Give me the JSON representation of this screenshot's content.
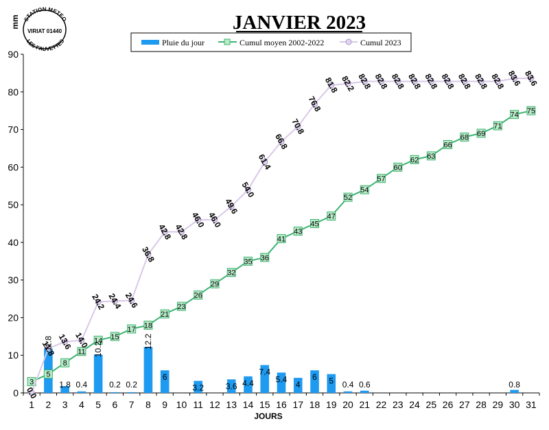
{
  "chart_data": {
    "type": "bar",
    "title": "JANVIER 2023",
    "xlabel": "JOURS",
    "ylabel": "mm",
    "ylim": [
      0,
      90
    ],
    "yticks": [
      0,
      10,
      20,
      30,
      40,
      50,
      60,
      70,
      80,
      90
    ],
    "categories": [
      "1",
      "2",
      "3",
      "4",
      "5",
      "6",
      "7",
      "8",
      "9",
      "10",
      "11",
      "12",
      "13",
      "14",
      "15",
      "16",
      "17",
      "18",
      "19",
      "20",
      "21",
      "22",
      "23",
      "24",
      "25",
      "26",
      "27",
      "28",
      "29",
      "30",
      "31"
    ],
    "legend_position": "top",
    "series": [
      {
        "name": "Pluie du jour",
        "kind": "bar",
        "color": "#1E9AF0",
        "values": [
          0,
          11.8,
          1.8,
          0.4,
          10.2,
          0.2,
          0.2,
          12.2,
          6,
          0,
          3.2,
          0,
          3.6,
          4.4,
          7.4,
          5.4,
          4,
          6,
          5,
          0.4,
          0.6,
          0,
          0,
          0,
          0,
          0,
          0,
          0,
          0,
          0.8,
          0
        ],
        "labels": [
          "",
          "11.8",
          "1.8",
          "0.4",
          "10.2",
          "0.2",
          "0.2",
          "12.2",
          "6",
          "",
          "3.2",
          "",
          "3.6",
          "4.4",
          "7.4",
          "5.4",
          "4",
          "6",
          "5",
          "0.4",
          "0.6",
          "",
          "",
          "",
          "",
          "",
          "",
          "",
          "",
          "0.8",
          ""
        ]
      },
      {
        "name": "Cumul moyen 2002-2022",
        "kind": "line",
        "color": "#3CB371",
        "values": [
          3,
          5,
          8,
          11,
          14,
          15,
          17,
          18,
          21,
          23,
          26,
          29,
          32,
          35,
          36,
          41,
          43,
          45,
          47,
          52,
          54,
          57,
          60,
          62,
          63,
          66,
          68,
          69,
          71,
          74,
          75
        ]
      },
      {
        "name": "Cumul 2023",
        "kind": "line",
        "color": "#D8C8E8",
        "values": [
          0.0,
          11.8,
          13.6,
          14.0,
          24.2,
          24.4,
          24.6,
          36.8,
          42.8,
          42.8,
          46.0,
          46.0,
          49.6,
          54.0,
          61.4,
          66.8,
          70.8,
          76.8,
          81.8,
          82.2,
          82.8,
          82.8,
          82.8,
          82.8,
          82.8,
          82.8,
          82.8,
          82.8,
          82.8,
          83.6,
          83.6
        ],
        "labels": [
          "0.0",
          "11.8",
          "13.6",
          "14.0",
          "24.2",
          "24.4",
          "24.6",
          "36.8",
          "42.8",
          "42.8",
          "46.0",
          "46.0",
          "49.6",
          "54.0",
          "61.4",
          "66.8",
          "70.8",
          "76.8",
          "81.8",
          "82.2",
          "82.8",
          "82.8",
          "82.8",
          "82.8",
          "82.8",
          "82.8",
          "82.8",
          "82.8",
          "82.8",
          "83.6",
          "83.6"
        ]
      }
    ]
  },
  "stamp": {
    "top_text": "STATION METEO",
    "middle_text": "VIRIAT 01440",
    "bottom_text": "LES FAUVETTES"
  }
}
